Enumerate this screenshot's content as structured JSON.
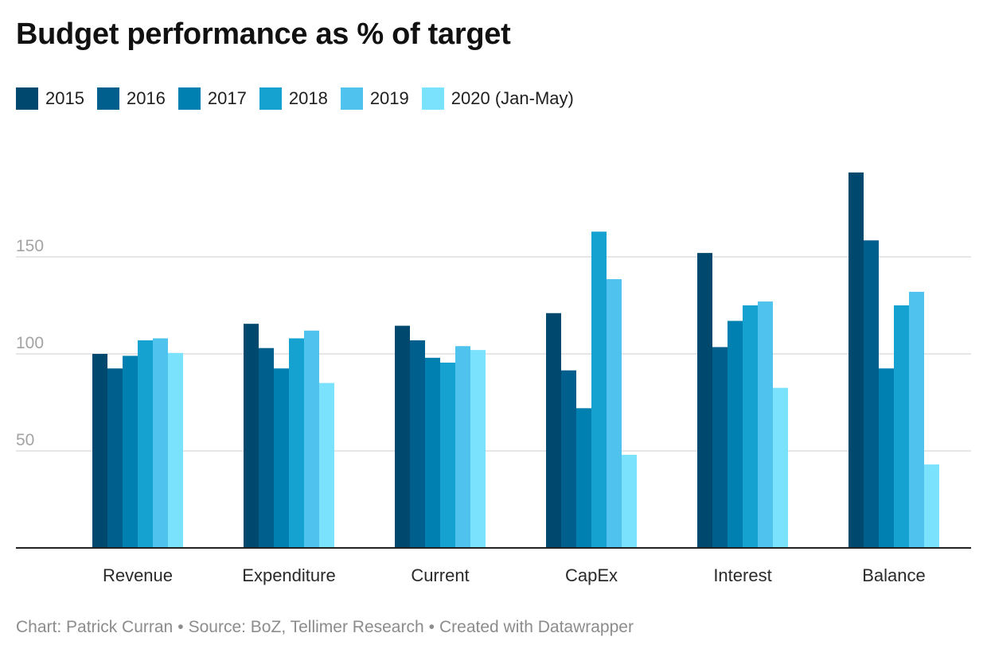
{
  "header": {
    "title": "Budget performance as % of target"
  },
  "footer": {
    "chart_by": "Chart: Patrick Curran",
    "source": "Source: BoZ, Tellimer Research",
    "created": "Created with Datawrapper",
    "separator": "•"
  },
  "chart_data": {
    "type": "bar",
    "title": "Budget performance as % of target",
    "xlabel": "",
    "ylabel": "",
    "ylim": [
      0,
      200
    ],
    "yticks": [
      50,
      100,
      150
    ],
    "grid": true,
    "legend_position": "top-left",
    "categories": [
      "Revenue",
      "Expenditure",
      "Current",
      "CapEx",
      "Interest",
      "Balance"
    ],
    "series": [
      {
        "name": "2015",
        "color": "#00486e",
        "values": [
          100,
          115.5,
          114.5,
          121,
          152,
          193.5
        ]
      },
      {
        "name": "2016",
        "color": "#005f8c",
        "values": [
          92.5,
          103,
          107,
          91.5,
          103.5,
          158.5
        ]
      },
      {
        "name": "2017",
        "color": "#0080b0",
        "values": [
          99,
          92.5,
          98,
          72,
          117,
          92.5
        ]
      },
      {
        "name": "2018",
        "color": "#15a2d1",
        "values": [
          107,
          108,
          95.5,
          163,
          125,
          125
        ]
      },
      {
        "name": "2019",
        "color": "#4fc3ee",
        "values": [
          108,
          112,
          104,
          138.5,
          127,
          132
        ]
      },
      {
        "name": "2020 (Jan-May)",
        "color": "#7ae2fd",
        "values": [
          100.5,
          85,
          102,
          48,
          82.5,
          43
        ]
      }
    ]
  }
}
